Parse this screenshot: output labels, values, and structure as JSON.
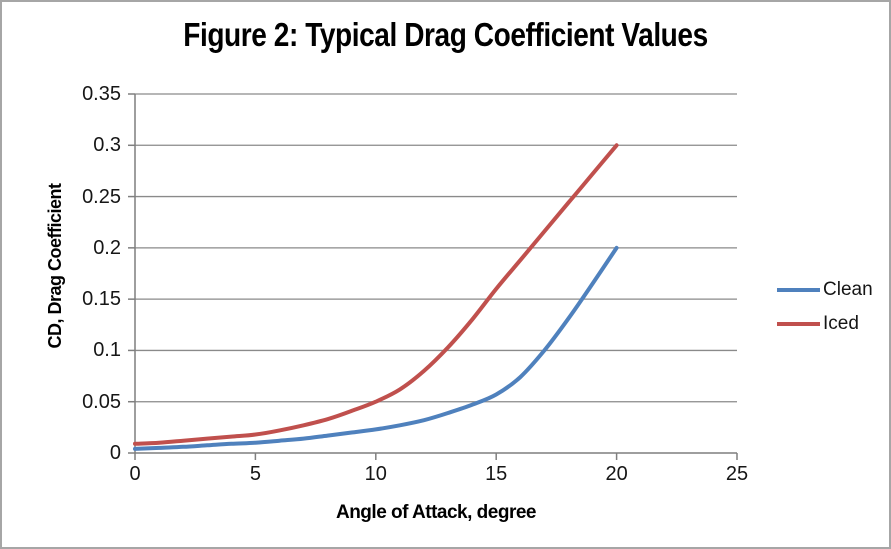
{
  "chart_data": {
    "type": "line",
    "title": "Figure 2: Typical Drag Coefficient Values",
    "xlabel": "Angle of Attack, degree",
    "ylabel": "CD, Drag Coefficient",
    "xlim": [
      0,
      25
    ],
    "ylim": [
      0,
      0.35
    ],
    "x_ticks": [
      0,
      5,
      10,
      15,
      20,
      25
    ],
    "y_ticks": [
      0,
      0.05,
      0.1,
      0.15,
      0.2,
      0.25,
      0.3,
      0.35
    ],
    "grid": "horizontal",
    "legend_position": "right",
    "series": [
      {
        "name": "Clean",
        "color": "#4F81BD",
        "points": [
          [
            0,
            0.004
          ],
          [
            1,
            0.005
          ],
          [
            2,
            0.006
          ],
          [
            3,
            0.0075
          ],
          [
            4,
            0.009
          ],
          [
            5,
            0.01
          ],
          [
            6,
            0.012
          ],
          [
            7,
            0.014
          ],
          [
            8,
            0.017
          ],
          [
            9,
            0.02
          ],
          [
            10,
            0.023
          ],
          [
            11,
            0.027
          ],
          [
            12,
            0.032
          ],
          [
            13,
            0.039
          ],
          [
            14,
            0.047
          ],
          [
            15,
            0.057
          ],
          [
            16,
            0.074
          ],
          [
            17,
            0.1
          ],
          [
            18,
            0.131
          ],
          [
            19,
            0.165
          ],
          [
            20,
            0.2
          ]
        ]
      },
      {
        "name": "Iced",
        "color": "#C0504D",
        "points": [
          [
            0,
            0.009
          ],
          [
            1,
            0.01
          ],
          [
            2,
            0.012
          ],
          [
            3,
            0.014
          ],
          [
            4,
            0.016
          ],
          [
            5,
            0.018
          ],
          [
            6,
            0.022
          ],
          [
            7,
            0.027
          ],
          [
            8,
            0.033
          ],
          [
            9,
            0.041
          ],
          [
            10,
            0.05
          ],
          [
            11,
            0.062
          ],
          [
            12,
            0.08
          ],
          [
            13,
            0.103
          ],
          [
            14,
            0.13
          ],
          [
            15,
            0.16
          ],
          [
            16,
            0.188
          ],
          [
            17,
            0.216
          ],
          [
            18,
            0.244
          ],
          [
            19,
            0.272
          ],
          [
            20,
            0.3
          ]
        ]
      }
    ]
  },
  "colors": {
    "gridline": "#8a8a8a",
    "axis": "#7f7f7f",
    "border": "#a6a6a6",
    "text": "#161616",
    "title": "#000000"
  }
}
